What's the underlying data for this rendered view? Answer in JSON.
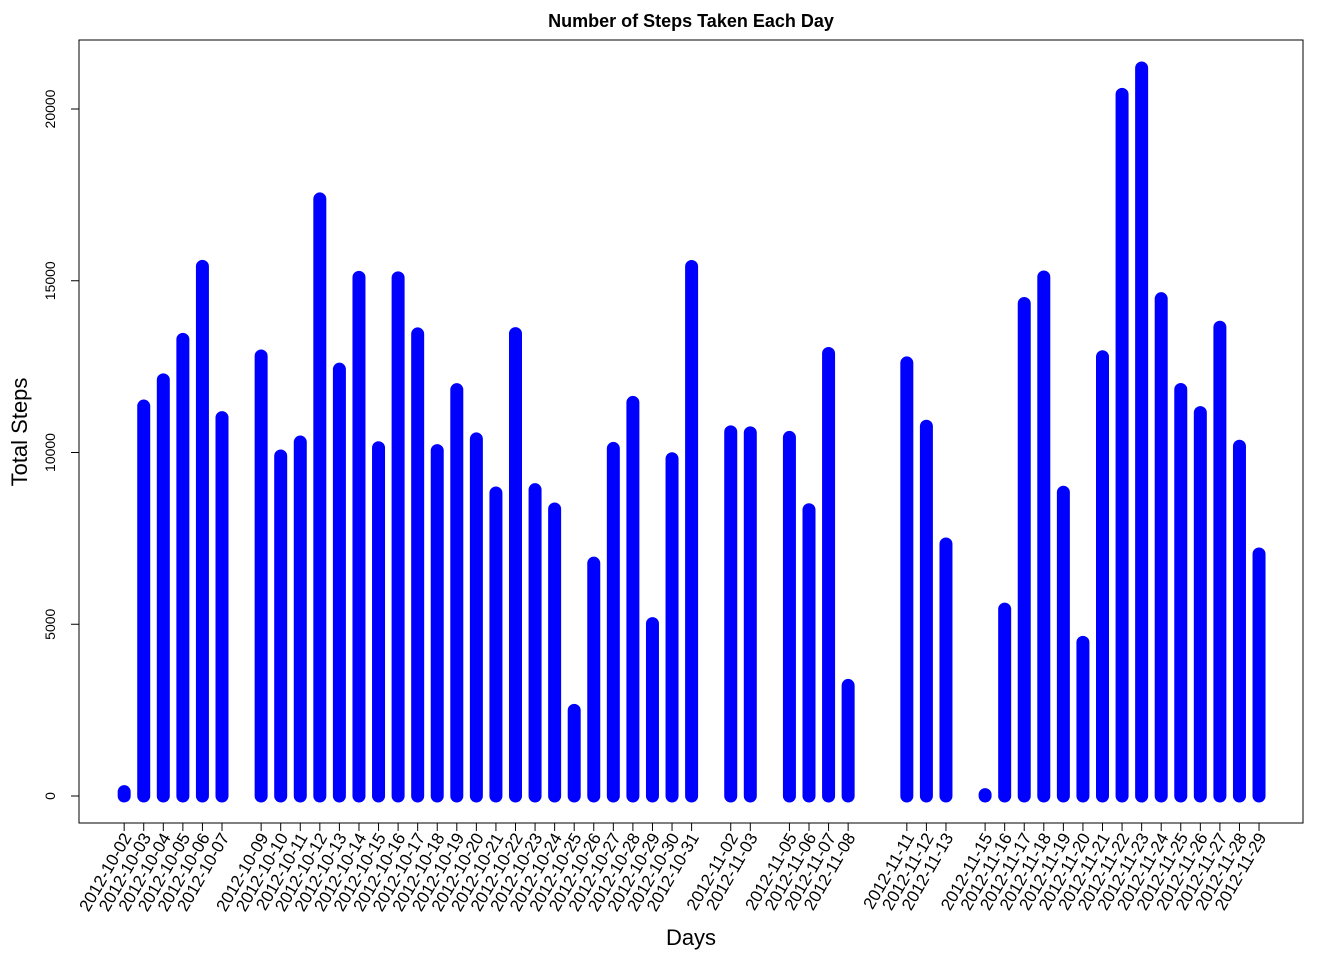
{
  "chart_data": {
    "type": "bar",
    "title": "Number of Steps Taken Each Day",
    "xlabel": "Days",
    "ylabel": "Total Steps",
    "ylim": [
      0,
      22000
    ],
    "yticks": [
      0,
      5000,
      10000,
      15000,
      20000
    ],
    "ytick_labels": [
      "0",
      "5000",
      "10000",
      "15000",
      "20000"
    ],
    "bar_color": "#0000ff",
    "grid": false,
    "x_start": "2012-10-01",
    "x_end": "2012-11-30",
    "categories": [
      "2012-10-02",
      "2012-10-03",
      "2012-10-04",
      "2012-10-05",
      "2012-10-06",
      "2012-10-07",
      "2012-10-09",
      "2012-10-10",
      "2012-10-11",
      "2012-10-12",
      "2012-10-13",
      "2012-10-14",
      "2012-10-15",
      "2012-10-16",
      "2012-10-17",
      "2012-10-18",
      "2012-10-19",
      "2012-10-20",
      "2012-10-21",
      "2012-10-22",
      "2012-10-23",
      "2012-10-24",
      "2012-10-25",
      "2012-10-26",
      "2012-10-27",
      "2012-10-28",
      "2012-10-29",
      "2012-10-30",
      "2012-10-31",
      "2012-11-02",
      "2012-11-03",
      "2012-11-05",
      "2012-11-06",
      "2012-11-07",
      "2012-11-08",
      "2012-11-11",
      "2012-11-12",
      "2012-11-13",
      "2012-11-15",
      "2012-11-16",
      "2012-11-17",
      "2012-11-18",
      "2012-11-19",
      "2012-11-20",
      "2012-11-21",
      "2012-11-22",
      "2012-11-23",
      "2012-11-24",
      "2012-11-25",
      "2012-11-26",
      "2012-11-27",
      "2012-11-28",
      "2012-11-29"
    ],
    "values": [
      126,
      11352,
      12116,
      13294,
      15420,
      11015,
      12811,
      9900,
      10304,
      17382,
      12426,
      15098,
      10139,
      15084,
      13452,
      10056,
      11829,
      10395,
      8821,
      13460,
      8918,
      8355,
      2492,
      6778,
      10119,
      11458,
      5018,
      9819,
      15414,
      10600,
      10571,
      10439,
      8334,
      12883,
      3219,
      12608,
      10765,
      7336,
      41,
      5441,
      14339,
      15110,
      8841,
      4472,
      12787,
      20427,
      21194,
      14478,
      11834,
      11162,
      13646,
      10183,
      7047
    ]
  }
}
